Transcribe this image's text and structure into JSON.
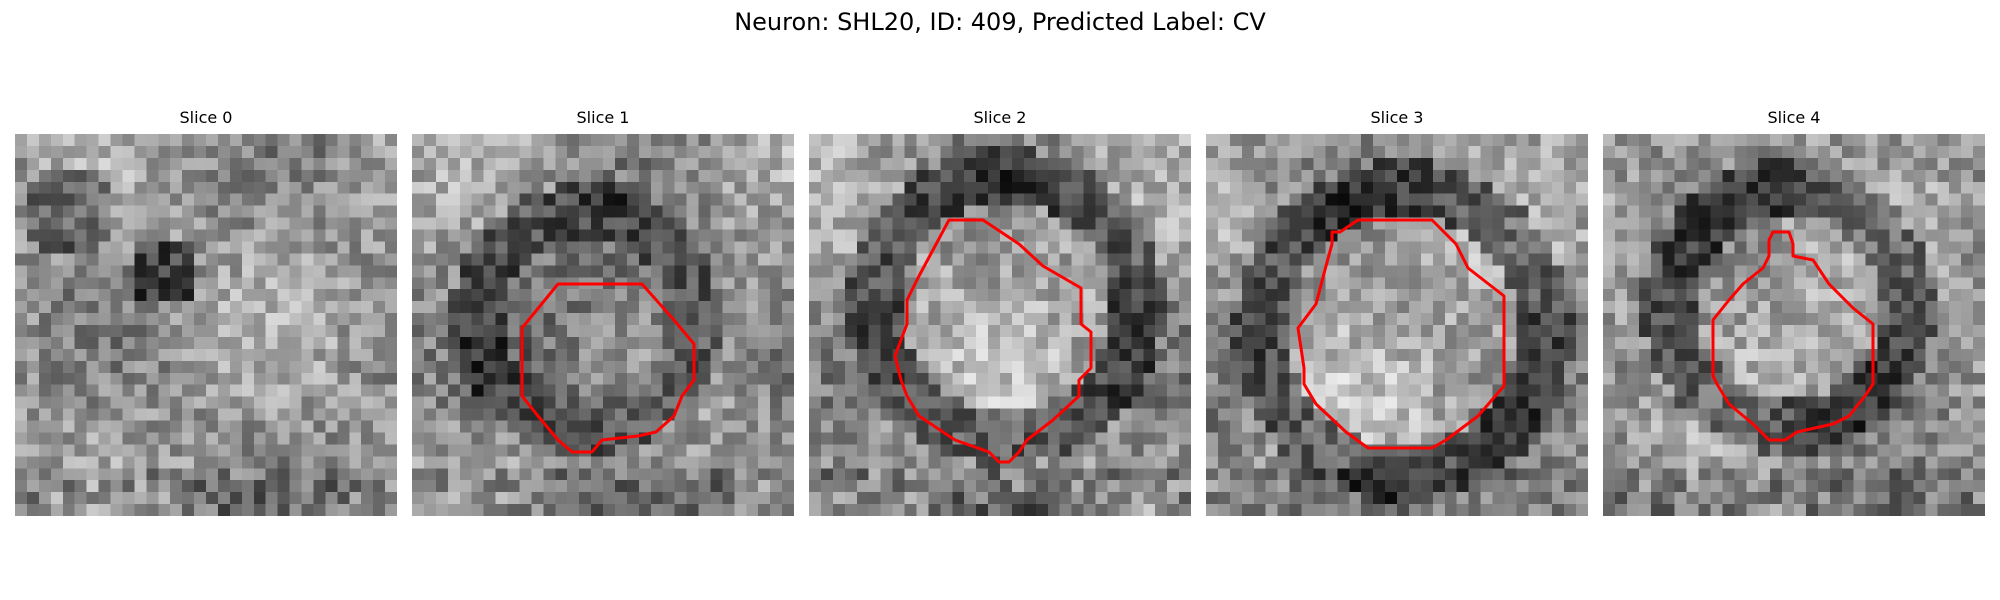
{
  "suptitle": "Neuron: SHL20, ID: 409, Predicted Label: CV",
  "contour_color": "#ff0000",
  "slices": [
    {
      "title": "Slice 0",
      "has_contour": false
    },
    {
      "title": "Slice 1",
      "has_contour": true
    },
    {
      "title": "Slice 2",
      "has_contour": true
    },
    {
      "title": "Slice 3",
      "has_contour": true
    },
    {
      "title": "Slice 4",
      "has_contour": true
    }
  ]
}
